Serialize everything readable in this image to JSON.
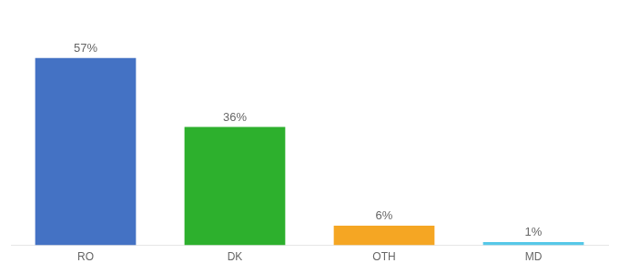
{
  "chart_data": {
    "type": "bar",
    "categories": [
      "RO",
      "DK",
      "OTH",
      "MD"
    ],
    "values": [
      57,
      36,
      6,
      1
    ],
    "value_labels": [
      "57%",
      "36%",
      "6%",
      "1%"
    ],
    "colors": [
      "#4472c4",
      "#2db02d",
      "#f5a623",
      "#56c8e8"
    ],
    "ylim": [
      0,
      68
    ],
    "grid": false,
    "data_labels": true,
    "tick_labels": "x"
  }
}
